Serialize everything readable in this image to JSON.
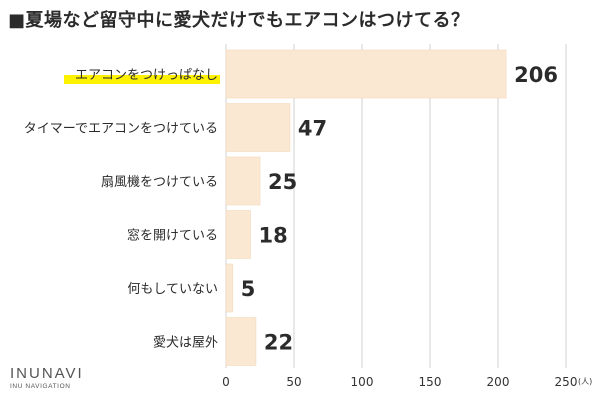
{
  "chart_data": {
    "type": "bar",
    "orientation": "horizontal",
    "title": "■夏場など留守中に愛犬だけでもエアコンはつけてる？",
    "categories": [
      "エアコンをつけっぱなし",
      "タイマーでエアコンをつけている",
      "扇風機をつけている",
      "窓を開けている",
      "何もしていない",
      "愛犬は屋外"
    ],
    "values": [
      206,
      47,
      25,
      18,
      5,
      22
    ],
    "highlighted_category": "エアコンをつけっぱなし",
    "xlim": [
      0,
      250
    ],
    "xticks": [
      0,
      50,
      100,
      150,
      200,
      250
    ],
    "x_unit": "(人)",
    "grid": true,
    "legend": "none",
    "colors": {
      "bar": "#fbe8d3",
      "bar_edge": "#f3d9bb",
      "highlight": "#fff200",
      "grid": "#d0d0d0",
      "text": "#2b2b2b"
    }
  },
  "branding": {
    "logo_text": "INUNAVI",
    "logo_subtext": "INU NAVIGATION"
  }
}
